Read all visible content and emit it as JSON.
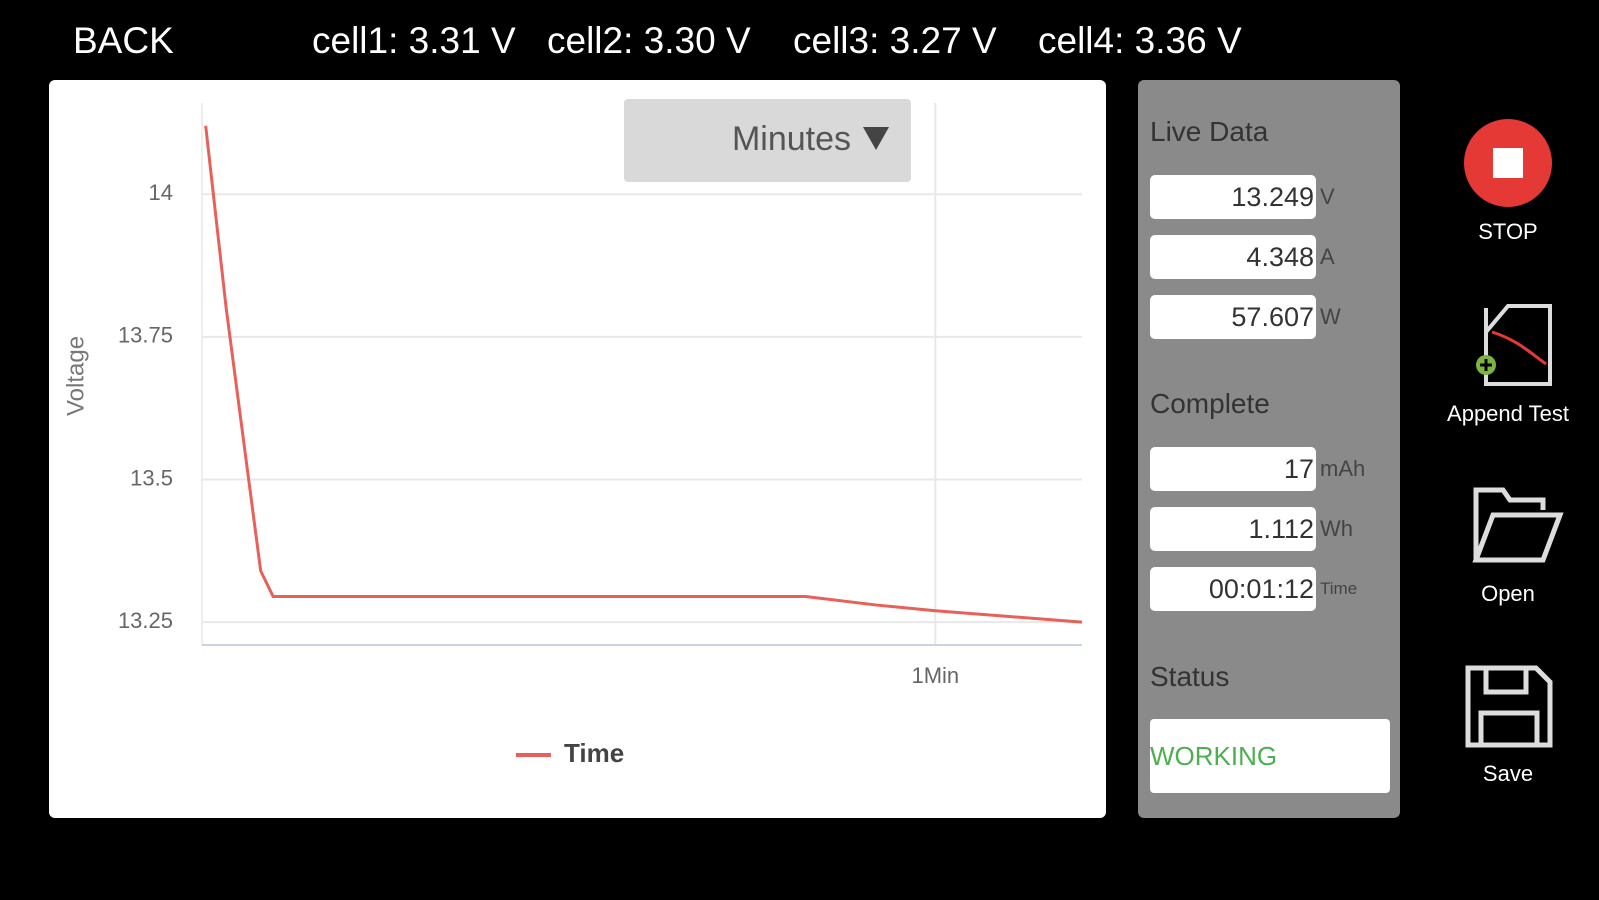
{
  "header": {
    "back": "BACK",
    "cells": [
      "cell1: 3.31 V",
      "cell2: 3.30 V",
      "cell3: 3.27 V",
      "cell4: 3.36 V"
    ]
  },
  "chart_data": {
    "type": "line",
    "ylabel": "Voltage",
    "dropdown": "Minutes",
    "x": [
      0.005,
      0.033,
      0.08,
      0.097,
      0.823,
      0.92,
      1.0,
      1.2
    ],
    "series": [
      {
        "name": "Time",
        "color": "#e8605a",
        "values": [
          14.12,
          13.8,
          13.34,
          13.295,
          13.295,
          13.28,
          13.27,
          13.25
        ]
      }
    ],
    "xlim": [
      0,
      1.2
    ],
    "xticks": [
      {
        "value": 1,
        "label": "1Min"
      }
    ],
    "ylim": [
      13.21,
      14.16
    ],
    "yticks": [
      13.25,
      13.5,
      13.75,
      14
    ],
    "grid": true
  },
  "panel": {
    "live_data": {
      "title": "Live Data",
      "fields": [
        {
          "value": 13.249,
          "unit": "V"
        },
        {
          "value": 4.348,
          "unit": "A"
        },
        {
          "value": 57.607,
          "unit": "W"
        }
      ]
    },
    "complete": {
      "title": "Complete",
      "fields": [
        {
          "value": 17,
          "unit": "mAh"
        },
        {
          "value": 1.112,
          "unit": "Wh"
        },
        {
          "value": "00:01:12",
          "unit": "Time"
        }
      ]
    },
    "status": {
      "title": "Status",
      "value": "WORKING"
    }
  },
  "buttons": [
    "STOP",
    "Append Test",
    "Open",
    "Save"
  ]
}
